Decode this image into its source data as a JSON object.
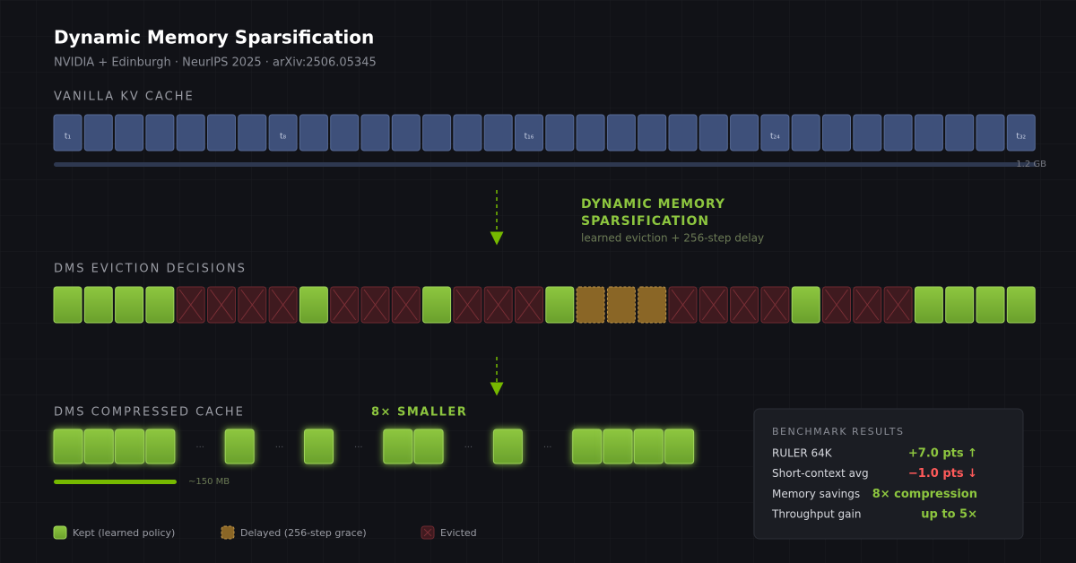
{
  "header": {
    "title": "Dynamic Memory Sparsification",
    "subtitle": "NVIDIA + Edinburgh · NeurIPS 2025 · arXiv:2506.05345"
  },
  "vanilla": {
    "label": "VANILLA KV CACHE",
    "tokens": [
      "t₁",
      null,
      null,
      null,
      null,
      null,
      null,
      "t₈",
      null,
      null,
      null,
      null,
      null,
      null,
      null,
      "t₁₆",
      null,
      null,
      null,
      null,
      null,
      null,
      null,
      "t₂₄",
      null,
      null,
      null,
      null,
      null,
      null,
      null,
      "t₃₂"
    ],
    "size": "1.2 GB"
  },
  "transform": {
    "title_lines": [
      "DYNAMIC MEMORY",
      "SPARSIFICATION"
    ],
    "note": "learned eviction + 256-step delay"
  },
  "eviction": {
    "label": "DMS EVICTION DECISIONS",
    "cells": [
      0,
      0,
      0,
      0,
      2,
      2,
      2,
      2,
      0,
      2,
      2,
      2,
      0,
      2,
      2,
      2,
      0,
      1,
      1,
      1,
      2,
      2,
      2,
      2,
      0,
      2,
      2,
      2,
      0,
      0,
      0,
      0
    ]
  },
  "compressed": {
    "label": "DMS COMPRESSED CACHE",
    "badge": "8× SMALLER",
    "groups": [
      4,
      1,
      1,
      2,
      1,
      4
    ],
    "separator": "···",
    "size": "~150 MB"
  },
  "legend": [
    "Kept (learned policy)",
    "Delayed (256-step grace)",
    "Evicted"
  ],
  "benchmark": {
    "title": "BENCHMARK RESULTS",
    "rows": [
      [
        "RULER 64K",
        "+7.0 pts ↑"
      ],
      [
        "Short-context avg",
        "−1.0 pts ↓"
      ],
      [
        "Memory savings",
        "8× compression"
      ],
      [
        "Throughput gain",
        "up to 5×"
      ]
    ]
  }
}
